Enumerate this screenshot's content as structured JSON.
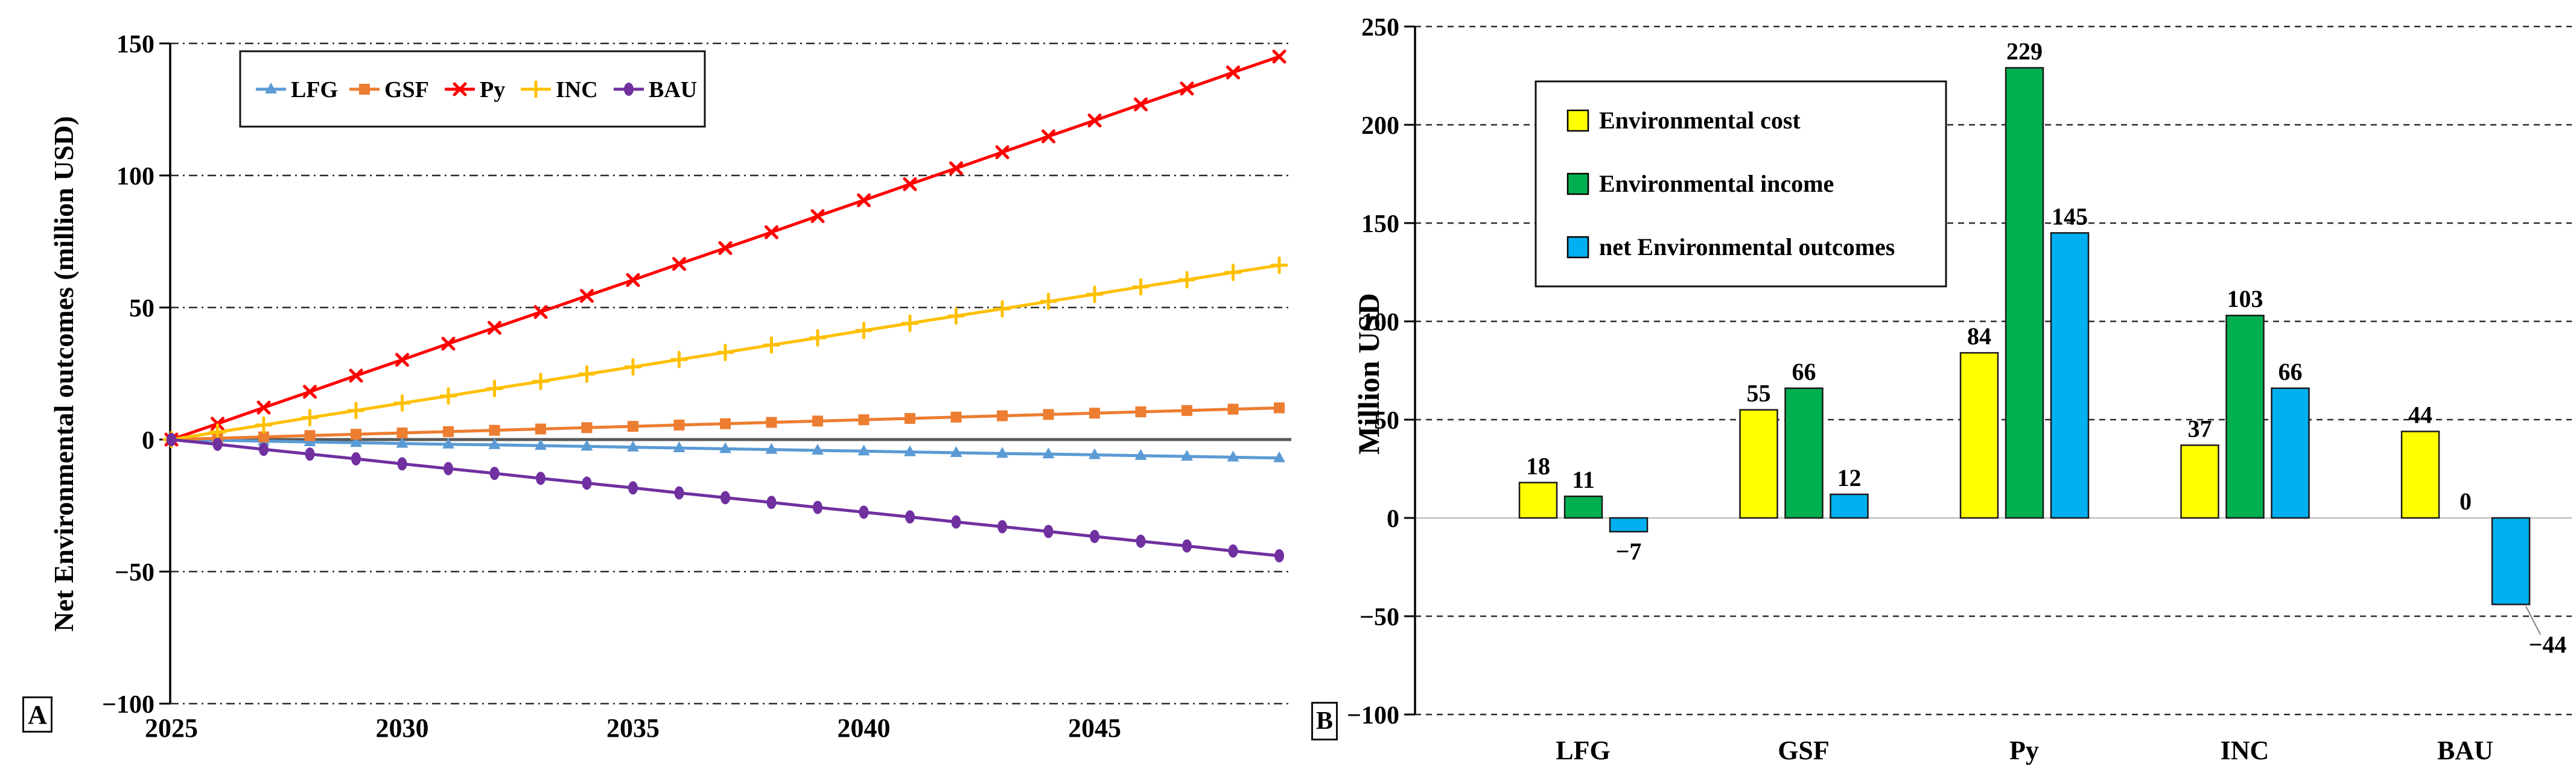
{
  "figure": {
    "panel_a": {
      "tag": "A",
      "ylabel": "Net Environmental outcomes (million USD)"
    },
    "panel_b": {
      "tag": "B",
      "ylabel": "Million USD"
    }
  },
  "chart_data": [
    {
      "panel": "A",
      "type": "line",
      "title": "",
      "xlabel": "",
      "ylabel": "Net Environmental outcomes (million USD)",
      "xlim": [
        2025,
        2049
      ],
      "ylim": [
        -100,
        150
      ],
      "x_tick_labels": [
        2025,
        2030,
        2035,
        2040,
        2045
      ],
      "y_ticks": [
        150,
        100,
        50,
        0,
        -50,
        -100
      ],
      "grid": "horizontal dash-dot lines, solid gray line at zero",
      "legend_position": "top-left horizontal box",
      "x": [
        2025,
        2026,
        2027,
        2028,
        2029,
        2030,
        2031,
        2032,
        2033,
        2034,
        2035,
        2036,
        2037,
        2038,
        2039,
        2040,
        2041,
        2042,
        2043,
        2044,
        2045,
        2046,
        2047,
        2048,
        2049
      ],
      "series": [
        {
          "name": "LFG",
          "color": "#5B9BD5",
          "marker": "triangle",
          "values": [
            0,
            -0.3,
            -0.6,
            -0.9,
            -1.2,
            -1.5,
            -1.8,
            -2,
            -2.3,
            -2.6,
            -2.9,
            -3.2,
            -3.5,
            -3.8,
            -4.1,
            -4.4,
            -4.7,
            -5,
            -5.3,
            -5.5,
            -5.8,
            -6.1,
            -6.4,
            -6.7,
            -7
          ]
        },
        {
          "name": "GSF",
          "color": "#ED7D31",
          "marker": "square",
          "values": [
            0,
            0.5,
            1,
            1.5,
            2,
            2.5,
            3,
            3.5,
            4,
            4.5,
            5,
            5.5,
            6,
            6.5,
            7,
            7.5,
            8,
            8.5,
            9,
            9.5,
            10,
            10.5,
            11,
            11.5,
            12
          ]
        },
        {
          "name": "Py",
          "color": "#FF0000",
          "marker": "x",
          "values": [
            0,
            6,
            12.1,
            18.1,
            24.2,
            30.2,
            36.3,
            42.3,
            48.3,
            54.4,
            60.4,
            66.5,
            72.5,
            78.5,
            84.6,
            90.6,
            96.7,
            102.7,
            108.8,
            114.8,
            120.8,
            126.9,
            132.9,
            139,
            145
          ]
        },
        {
          "name": "INC",
          "color": "#FFC000",
          "marker": "plus",
          "values": [
            0,
            2.8,
            5.5,
            8.3,
            11,
            13.8,
            16.5,
            19.3,
            22,
            24.8,
            27.5,
            30.3,
            33,
            35.8,
            38.5,
            41.3,
            44,
            46.8,
            49.5,
            52.3,
            55,
            57.8,
            60.5,
            63.3,
            66
          ]
        },
        {
          "name": "BAU",
          "color": "#7030A0",
          "marker": "ellipse",
          "values": [
            0,
            -1.8,
            -3.7,
            -5.5,
            -7.3,
            -9.2,
            -11,
            -12.8,
            -14.7,
            -16.5,
            -18.3,
            -20.2,
            -22,
            -23.8,
            -25.7,
            -27.5,
            -29.3,
            -31.2,
            -33,
            -34.8,
            -36.7,
            -38.5,
            -40.3,
            -42.2,
            -44
          ]
        }
      ]
    },
    {
      "panel": "B",
      "type": "bar",
      "title": "",
      "xlabel": "",
      "ylabel": "Million USD",
      "categories": [
        "LFG",
        "GSF",
        "Py",
        "INC",
        "BAU"
      ],
      "ylim": [
        -100,
        250
      ],
      "y_ticks": [
        250,
        200,
        150,
        100,
        50,
        0,
        -50,
        -100
      ],
      "grid": "horizontal dashed lines, solid light-gray line at zero",
      "legend_position": "top-left vertical box",
      "series": [
        {
          "name": "Environmental cost",
          "color": "#FFFF00",
          "values": [
            18,
            55,
            84,
            37,
            44
          ]
        },
        {
          "name": "Environmental income",
          "color": "#00B050",
          "values": [
            11,
            66,
            229,
            103,
            0
          ]
        },
        {
          "name": "net Environmental outcomes",
          "color": "#00B0F0",
          "values": [
            -7,
            12,
            145,
            66,
            -44
          ]
        }
      ]
    }
  ]
}
